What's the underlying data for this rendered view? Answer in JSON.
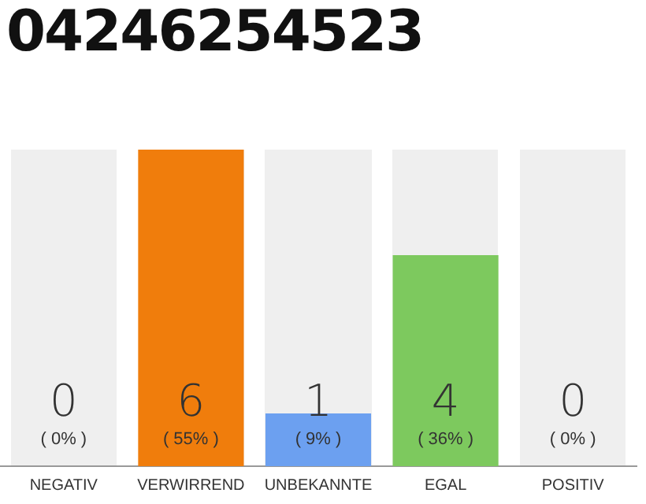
{
  "chart_data": {
    "type": "bar",
    "title": "04246254523",
    "categories": [
      "NEGATIV",
      "VERWIRREND",
      "UNBEKANNTE",
      "EGAL",
      "POSITIV"
    ],
    "values": [
      0,
      6,
      1,
      4,
      0
    ],
    "colors": [
      "#f07d0c",
      "#f07d0c",
      "#6ca0f0",
      "#7dc95e",
      "#7dc95e"
    ],
    "data_labels": true,
    "annotations": [
      "( 0% )",
      "( 55% )",
      "( 9% )",
      "( 36% )",
      "( 0% )"
    ],
    "grid": false,
    "legend": false
  }
}
